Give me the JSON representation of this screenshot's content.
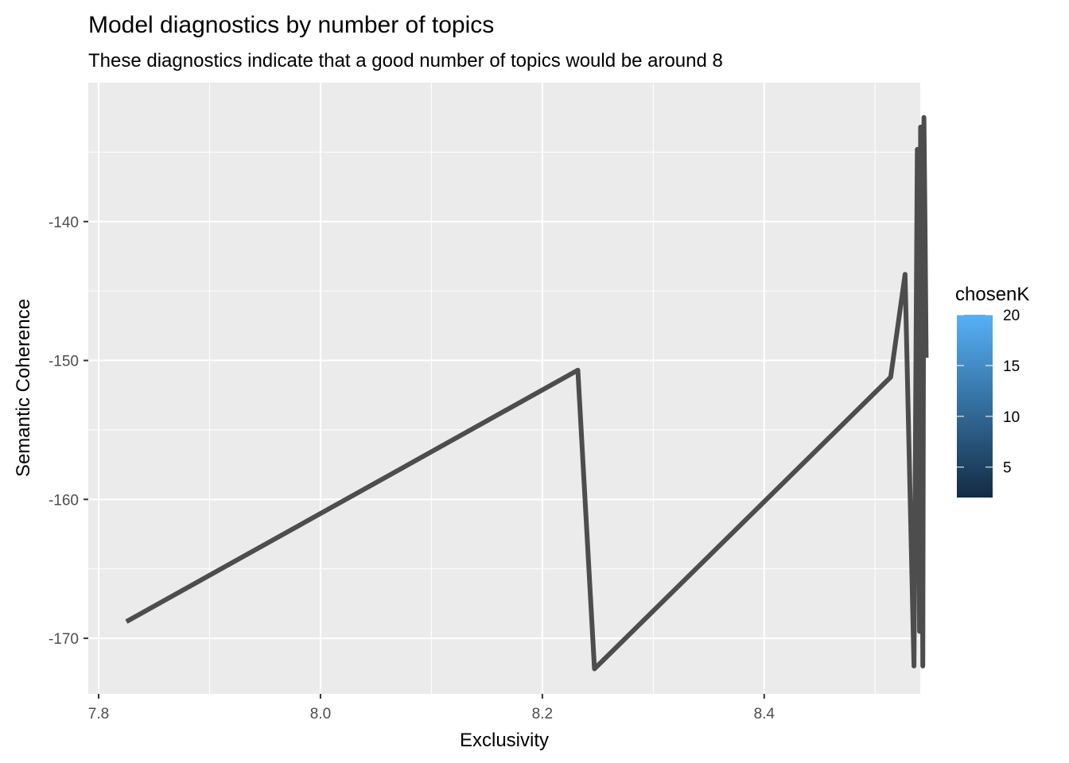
{
  "chart_data": {
    "type": "line",
    "title": "Model diagnostics by number of topics",
    "subtitle": "These diagnostics indicate that a good number of topics would be around 8",
    "xlabel": "Exclusivity",
    "ylabel": "Semantic Coherence",
    "xlim": [
      7.8,
      8.55
    ],
    "ylim": [
      -174,
      -130
    ],
    "x_ticks": [
      7.8,
      8.0,
      8.2,
      8.4
    ],
    "x_tick_labels": [
      "7.8",
      "8.0",
      "8.2",
      "8.4"
    ],
    "y_ticks": [
      -140,
      -150,
      -160,
      -170
    ],
    "y_tick_labels": [
      "-140",
      "-150",
      "-160",
      "-170"
    ],
    "grid": true,
    "line_color": "#4d4d4d",
    "series": [
      {
        "x": [
          7.825,
          8.232,
          8.247,
          8.514,
          8.527,
          8.535,
          8.538,
          8.54,
          8.541,
          8.542,
          8.543,
          8.544,
          8.545,
          8.546
        ],
        "y": [
          -168.8,
          -150.7,
          -172.2,
          -151.2,
          -143.8,
          -172.0,
          -134.8,
          -169.5,
          -133.2,
          -150.3,
          -172.0,
          -132.5,
          -140.3,
          -149.8
        ]
      }
    ],
    "legend": {
      "title": "chosenK",
      "placement": "right",
      "range": [
        2,
        20
      ],
      "ticks": [
        5,
        10,
        15,
        20
      ],
      "tick_labels": [
        "5",
        "10",
        "15",
        "20"
      ],
      "color_low": "#132b43",
      "color_high": "#56b1f7"
    }
  }
}
